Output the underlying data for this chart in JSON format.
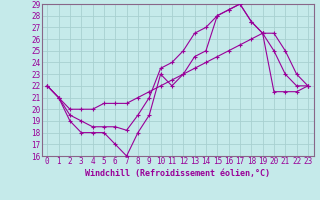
{
  "xlabel": "Windchill (Refroidissement éolien,°C)",
  "background_color": "#c5eaea",
  "grid_color": "#a8d0d0",
  "line_color": "#990099",
  "spine_color": "#886688",
  "xlim": [
    -0.5,
    23.5
  ],
  "ylim": [
    16,
    29
  ],
  "xticks": [
    0,
    1,
    2,
    3,
    4,
    5,
    6,
    7,
    8,
    9,
    10,
    11,
    12,
    13,
    14,
    15,
    16,
    17,
    18,
    19,
    20,
    21,
    22,
    23
  ],
  "yticks": [
    16,
    17,
    18,
    19,
    20,
    21,
    22,
    23,
    24,
    25,
    26,
    27,
    28,
    29
  ],
  "series1_x": [
    0,
    1,
    2,
    3,
    4,
    5,
    6,
    7,
    8,
    9,
    10,
    11,
    12,
    13,
    14,
    15,
    16,
    17,
    18,
    19,
    20,
    21,
    22,
    23
  ],
  "series1_y": [
    22,
    21,
    19,
    18,
    18,
    18,
    17,
    16,
    18,
    19.5,
    23,
    22,
    23,
    24.5,
    25,
    28,
    28.5,
    29,
    27.5,
    26.5,
    25,
    23,
    22,
    22
  ],
  "series2_x": [
    0,
    1,
    2,
    3,
    4,
    5,
    6,
    7,
    8,
    9,
    10,
    11,
    12,
    13,
    14,
    15,
    16,
    17,
    18,
    19,
    20,
    21,
    22,
    23
  ],
  "series2_y": [
    22,
    21,
    19.5,
    19,
    18.5,
    18.5,
    18.5,
    18.2,
    19.5,
    21,
    23.5,
    24,
    25,
    26.5,
    27,
    28,
    28.5,
    29,
    27.5,
    26.5,
    26.5,
    25,
    23,
    22
  ],
  "series3_x": [
    0,
    1,
    2,
    3,
    4,
    5,
    6,
    7,
    8,
    9,
    10,
    11,
    12,
    13,
    14,
    15,
    16,
    17,
    18,
    19,
    20,
    21,
    22,
    23
  ],
  "series3_y": [
    22,
    21,
    20,
    20,
    20,
    20.5,
    20.5,
    20.5,
    21,
    21.5,
    22,
    22.5,
    23,
    23.5,
    24,
    24.5,
    25,
    25.5,
    26,
    26.5,
    21.5,
    21.5,
    21.5,
    22
  ],
  "xlabel_fontsize": 6,
  "tick_fontsize": 5.5
}
